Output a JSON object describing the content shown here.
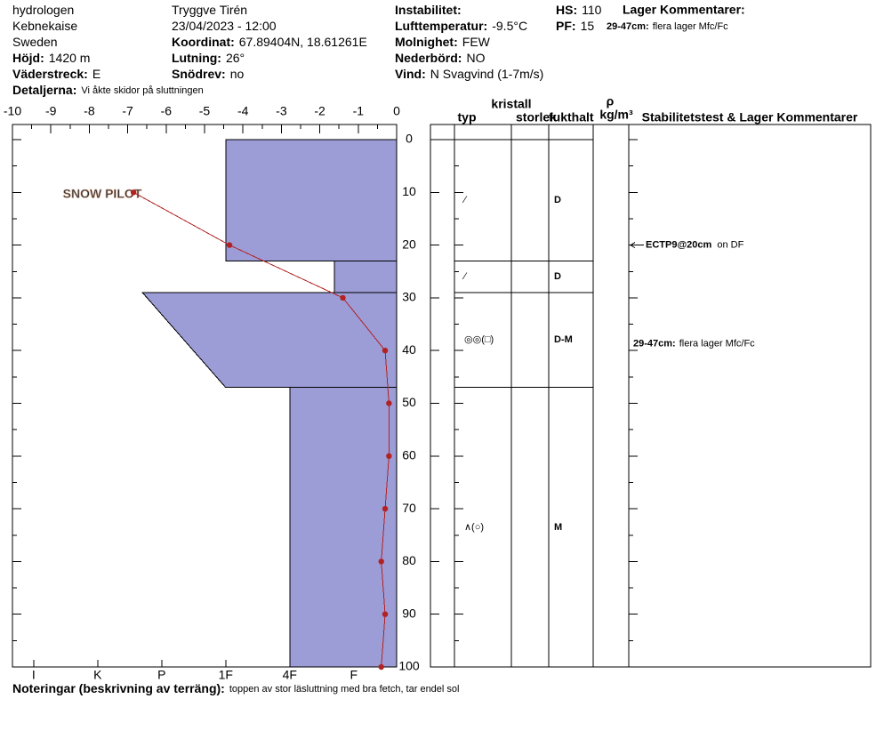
{
  "header": {
    "col1": [
      {
        "value": "hydrologen"
      },
      {
        "value": "Kebnekaise"
      },
      {
        "value": "Sweden"
      },
      {
        "label": "Höjd:",
        "value": "1420 m"
      },
      {
        "label": "Väderstreck:",
        "value": "E"
      }
    ],
    "details": {
      "label": "Detaljerna:",
      "value": "Vi åkte skidor på sluttningen"
    },
    "col2": [
      {
        "value": "Tryggve Tirén"
      },
      {
        "value": "23/04/2023 - 12:00"
      },
      {
        "label": "Koordinat:",
        "value": "67.89404N, 18.61261E"
      },
      {
        "label": "Lutning:",
        "value": "26°"
      },
      {
        "label": "Snödrev:",
        "value": "no"
      }
    ],
    "col3": [
      {
        "label": "Instabilitet:"
      },
      {
        "label": "Lufttemperatur:",
        "value": "-9.5°C"
      },
      {
        "label": "Molnighet:",
        "value": "FEW"
      },
      {
        "label": "Nederbörd:",
        "value": "NO"
      },
      {
        "label": "Vind:",
        "value": "N Svagvind (1-7m/s)"
      }
    ],
    "col4": [
      {
        "label": "HS:",
        "value": "110"
      },
      {
        "label": "PF:",
        "value": "15"
      }
    ],
    "layer_comments_title": "Lager Kommentarer:",
    "layer_comment": {
      "label": "29-47cm:",
      "value": "flera lager Mfc/Fc"
    }
  },
  "chart_data": {
    "type": "snow-profile",
    "logo": "SNOW PILOT",
    "ylim": [
      0,
      100
    ],
    "yticks": [
      0,
      10,
      20,
      30,
      40,
      50,
      60,
      70,
      80,
      90,
      100
    ],
    "xlim": [
      -10,
      0
    ],
    "xticks": [
      -10,
      -9,
      -8,
      -7,
      -6,
      -5,
      -4,
      -3,
      -2,
      -1,
      0
    ],
    "hardness_lim": [
      6.33,
      0.33
    ],
    "hardness_ticks": [
      {
        "value": 6,
        "label": "I"
      },
      {
        "value": 5,
        "label": "K"
      },
      {
        "value": 4,
        "label": "P"
      },
      {
        "value": 3,
        "label": "1F"
      },
      {
        "value": 2,
        "label": "4F"
      },
      {
        "value": 1,
        "label": "F"
      }
    ],
    "layer_color": "#9c9cd6",
    "temperature": {
      "color": "#b22222",
      "depths": [
        10,
        20,
        30,
        40,
        50,
        60,
        70,
        80,
        90,
        100
      ],
      "temps": [
        -6.85,
        -4.35,
        -1.4,
        -0.3,
        -0.2,
        -0.2,
        -0.3,
        -0.4,
        -0.3,
        -0.4
      ]
    },
    "layers": [
      {
        "top": 0,
        "bottom": 23,
        "hardness_top": 3,
        "hardness_bottom": 3,
        "form": "⁄",
        "moisture": "D"
      },
      {
        "top": 23,
        "bottom": 29,
        "hardness_top": 1.3,
        "hardness_bottom": 1.3,
        "form": "⁄",
        "moisture": "D"
      },
      {
        "top": 29,
        "bottom": 47,
        "hardness_top": 4.3,
        "hardness_bottom": 3,
        "form": "◎◎(□)",
        "moisture": "D-M",
        "comment": {
          "label": "29-47cm:",
          "value": "flera lager Mfc/Fc"
        }
      },
      {
        "top": 47,
        "bottom": 100,
        "hardness_top": 2,
        "hardness_bottom": 2,
        "form": "∧(○)",
        "moisture": "M"
      }
    ],
    "stability_tests": [
      {
        "depth": 20,
        "label": "ECTP9@20cm",
        "comment": "on DF"
      }
    ],
    "columns": {
      "kristall": "kristall",
      "typ": "typ",
      "storlek": "storlek",
      "fukthalt": "fukthalt",
      "rho": "ρ",
      "density_unit": "kg/m³",
      "comments": "Stabilitetstest & Lager Kommentarer"
    }
  },
  "notes": {
    "label": "Noteringar (beskrivning av terräng):",
    "value": "toppen av stor läsluttning med bra fetch, tar endel sol"
  }
}
